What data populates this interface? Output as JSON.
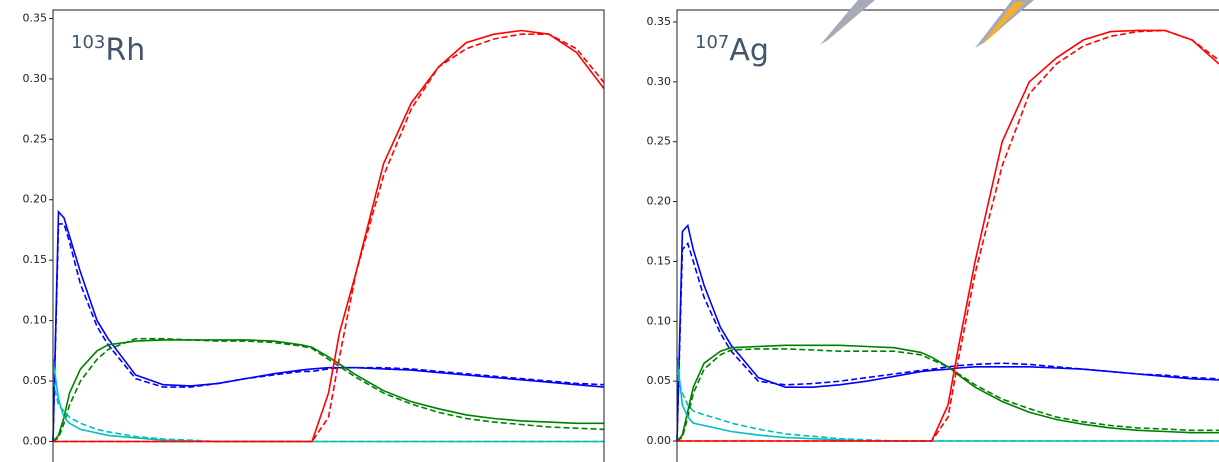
{
  "chart_data": [
    {
      "type": "line",
      "label": {
        "mass": "103",
        "symbol": "Rh"
      },
      "x": [
        0,
        1,
        2,
        3,
        5,
        8,
        10,
        15,
        20,
        25,
        30,
        35,
        40,
        45,
        47,
        50,
        52,
        55,
        60,
        65,
        70,
        75,
        80,
        85,
        90,
        95,
        100
      ],
      "xlim": [
        0,
        100
      ],
      "ylim": [
        -0.017,
        0.357
      ],
      "yticks": [
        {
          "value": 0,
          "label": "0.00"
        },
        0.05,
        {
          "value": 0.1,
          "label": "0.10"
        },
        0.15,
        {
          "value": 0.2,
          "label": "0.20"
        },
        0.25,
        {
          "value": 0.3,
          "label": "0.30"
        },
        0.35
      ],
      "series": [
        {
          "color": "#0000ff",
          "dash": false,
          "values": [
            0,
            0.19,
            0.185,
            0.17,
            0.14,
            0.1,
            0.085,
            0.055,
            0.047,
            0.046,
            0.048,
            0.052,
            0.056,
            0.059,
            0.06,
            0.061,
            0.061,
            0.061,
            0.06,
            0.059,
            0.057,
            0.055,
            0.053,
            0.051,
            0.049,
            0.047,
            0.045
          ]
        },
        {
          "color": "#0000ff",
          "dash": true,
          "values": [
            0,
            0.18,
            0.18,
            0.165,
            0.13,
            0.095,
            0.08,
            0.052,
            0.045,
            0.045,
            0.048,
            0.052,
            0.055,
            0.058,
            0.058,
            0.06,
            0.061,
            0.061,
            0.061,
            0.06,
            0.058,
            0.056,
            0.054,
            0.052,
            0.05,
            0.048,
            0.047
          ]
        },
        {
          "color": "#008000",
          "dash": false,
          "values": [
            0,
            0.005,
            0.02,
            0.04,
            0.06,
            0.075,
            0.08,
            0.083,
            0.084,
            0.084,
            0.084,
            0.084,
            0.083,
            0.08,
            0.078,
            0.07,
            0.064,
            0.055,
            0.042,
            0.033,
            0.027,
            0.022,
            0.019,
            0.017,
            0.016,
            0.015,
            0.015
          ]
        },
        {
          "color": "#008000",
          "dash": true,
          "values": [
            0,
            0.003,
            0.015,
            0.03,
            0.05,
            0.068,
            0.076,
            0.085,
            0.085,
            0.084,
            0.083,
            0.083,
            0.082,
            0.079,
            0.077,
            0.068,
            0.062,
            0.053,
            0.04,
            0.031,
            0.024,
            0.019,
            0.016,
            0.014,
            0.012,
            0.011,
            0.01
          ]
        },
        {
          "color": "#00bfbf",
          "dash": false,
          "values": [
            0.068,
            0.035,
            0.02,
            0.015,
            0.01,
            0.007,
            0.005,
            0.003,
            0.001,
            0.0005,
            0,
            0,
            0,
            0,
            0,
            0,
            0,
            0,
            0,
            0,
            0,
            0,
            0,
            0,
            0,
            0,
            0
          ]
        },
        {
          "color": "#00bfbf",
          "dash": true,
          "values": [
            0.05,
            0.03,
            0.025,
            0.02,
            0.015,
            0.01,
            0.008,
            0.004,
            0.002,
            0.001,
            0,
            0,
            0,
            0,
            0,
            0,
            0,
            0,
            0,
            0,
            0,
            0,
            0,
            0,
            0,
            0,
            0
          ]
        },
        {
          "color": "#ff0000",
          "dash": false,
          "values": [
            0,
            0,
            0,
            0,
            0,
            0,
            0,
            0,
            0,
            0,
            0,
            0,
            0,
            0,
            0,
            0.04,
            0.09,
            0.14,
            0.23,
            0.28,
            0.31,
            0.33,
            0.337,
            0.34,
            0.337,
            0.322,
            0.292
          ]
        },
        {
          "color": "#ff0000",
          "dash": true,
          "values": [
            0,
            0,
            0,
            0,
            0,
            0,
            0,
            0,
            0,
            0,
            0,
            0,
            0,
            0,
            0,
            0.02,
            0.07,
            0.14,
            0.22,
            0.275,
            0.31,
            0.325,
            0.333,
            0.337,
            0.337,
            0.325,
            0.297
          ]
        }
      ]
    },
    {
      "type": "line",
      "label": {
        "mass": "107",
        "symbol": "Ag"
      },
      "x": [
        0,
        1,
        2,
        3,
        5,
        8,
        10,
        15,
        20,
        25,
        30,
        35,
        40,
        45,
        47,
        50,
        52,
        55,
        60,
        65,
        70,
        75,
        80,
        85,
        90,
        95,
        100
      ],
      "xlim": [
        0,
        100
      ],
      "ylim": [
        -0.0175,
        0.36
      ],
      "yticks": [
        {
          "value": 0,
          "label": "0.00"
        },
        0.05,
        {
          "value": 0.1,
          "label": "0.10"
        },
        0.15,
        {
          "value": 0.2,
          "label": "0.20"
        },
        0.25,
        {
          "value": 0.3,
          "label": "0.30"
        },
        0.35
      ],
      "series": [
        {
          "color": "#0000ff",
          "dash": false,
          "values": [
            0,
            0.175,
            0.18,
            0.16,
            0.13,
            0.095,
            0.08,
            0.053,
            0.045,
            0.045,
            0.047,
            0.05,
            0.054,
            0.058,
            0.059,
            0.06,
            0.061,
            0.062,
            0.062,
            0.062,
            0.061,
            0.06,
            0.058,
            0.056,
            0.054,
            0.052,
            0.051
          ]
        },
        {
          "color": "#0000ff",
          "dash": true,
          "values": [
            0,
            0.16,
            0.165,
            0.15,
            0.12,
            0.09,
            0.075,
            0.05,
            0.047,
            0.048,
            0.05,
            0.053,
            0.056,
            0.059,
            0.06,
            0.062,
            0.063,
            0.064,
            0.065,
            0.064,
            0.062,
            0.06,
            0.058,
            0.056,
            0.055,
            0.053,
            0.052
          ]
        },
        {
          "color": "#008000",
          "dash": false,
          "values": [
            0,
            0.005,
            0.025,
            0.045,
            0.065,
            0.075,
            0.078,
            0.079,
            0.08,
            0.08,
            0.08,
            0.079,
            0.078,
            0.074,
            0.07,
            0.062,
            0.055,
            0.045,
            0.033,
            0.024,
            0.018,
            0.014,
            0.011,
            0.009,
            0.008,
            0.007,
            0.007
          ]
        },
        {
          "color": "#008000",
          "dash": true,
          "values": [
            0,
            0.003,
            0.02,
            0.04,
            0.06,
            0.072,
            0.076,
            0.077,
            0.077,
            0.076,
            0.075,
            0.075,
            0.075,
            0.072,
            0.068,
            0.062,
            0.056,
            0.047,
            0.035,
            0.027,
            0.02,
            0.016,
            0.013,
            0.011,
            0.01,
            0.009,
            0.009
          ]
        },
        {
          "color": "#00bfbf",
          "dash": false,
          "values": [
            0.07,
            0.03,
            0.02,
            0.015,
            0.013,
            0.01,
            0.008,
            0.005,
            0.003,
            0.002,
            0.001,
            0,
            0,
            0,
            0,
            0,
            0,
            0,
            0,
            0,
            0,
            0,
            0,
            0,
            0,
            0,
            0
          ]
        },
        {
          "color": "#00bfbf",
          "dash": true,
          "values": [
            0.055,
            0.04,
            0.03,
            0.025,
            0.022,
            0.018,
            0.015,
            0.01,
            0.006,
            0.004,
            0.002,
            0.001,
            0,
            0,
            0,
            0,
            0,
            0,
            0,
            0,
            0,
            0,
            0,
            0,
            0,
            0,
            0
          ]
        },
        {
          "color": "#ff0000",
          "dash": false,
          "values": [
            0,
            0,
            0,
            0,
            0,
            0,
            0,
            0,
            0,
            0,
            0,
            0,
            0,
            0,
            0,
            0.03,
            0.08,
            0.15,
            0.25,
            0.3,
            0.32,
            0.335,
            0.342,
            0.343,
            0.343,
            0.335,
            0.315
          ]
        },
        {
          "color": "#ff0000",
          "dash": true,
          "values": [
            0,
            0,
            0,
            0,
            0,
            0,
            0,
            0,
            0,
            0,
            0,
            0,
            0,
            0,
            0,
            0.02,
            0.07,
            0.14,
            0.23,
            0.29,
            0.315,
            0.33,
            0.338,
            0.342,
            0.343,
            0.335,
            0.318
          ]
        }
      ]
    }
  ]
}
